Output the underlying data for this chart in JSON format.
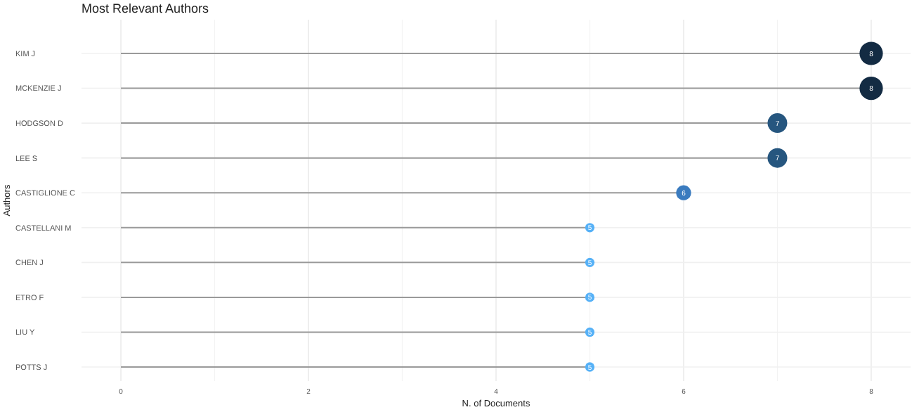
{
  "chart_data": {
    "type": "lollipop",
    "title": "Most Relevant Authors",
    "xlabel": "N. of Documents",
    "ylabel": "Authors",
    "orientation": "horizontal",
    "categories": [
      "KIM J",
      "MCKENZIE J",
      "HODGSON D",
      "LEE S",
      "CASTIGLIONE C",
      "CASTELLANI M",
      "CHEN J",
      "ETRO F",
      "LIU Y",
      "POTTS J"
    ],
    "values": [
      8,
      8,
      7,
      7,
      6,
      5,
      5,
      5,
      5,
      5
    ],
    "colors": [
      "#132b43",
      "#132b43",
      "#26567f",
      "#26567f",
      "#3a7bbf",
      "#56b1f7",
      "#56b1f7",
      "#56b1f7",
      "#56b1f7",
      "#56b1f7"
    ],
    "sizes": [
      1,
      1,
      0.71,
      0.71,
      0.41,
      0.16,
      0.16,
      0.16,
      0.16,
      0.16
    ],
    "xlim": [
      -0.42,
      8.42
    ],
    "xticks": [
      0,
      2,
      4,
      6,
      8
    ],
    "grid": true,
    "data_labels": true
  }
}
